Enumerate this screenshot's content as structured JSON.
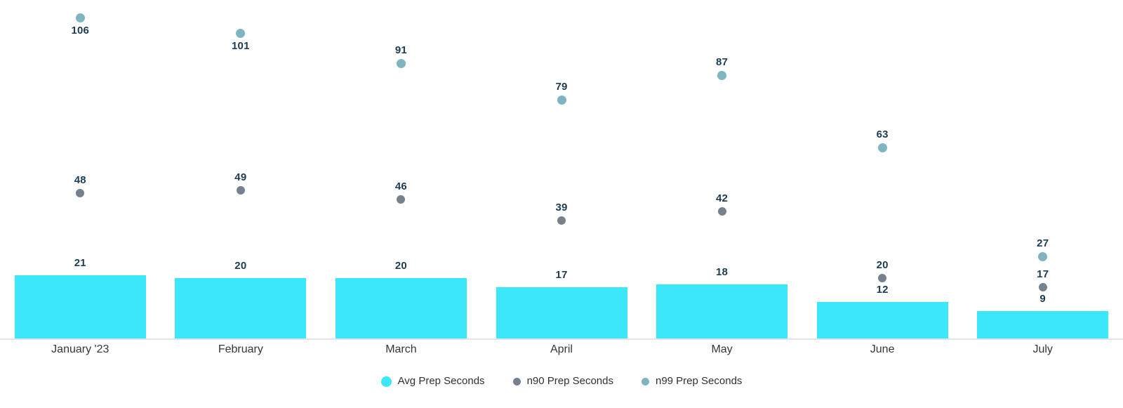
{
  "chart_data": {
    "type": "bar",
    "title": "",
    "xlabel": "",
    "ylabel": "",
    "ylim": [
      0,
      112
    ],
    "grid": false,
    "legend_position": "bottom",
    "value_labels_shown": true,
    "categories": [
      "January '23",
      "February",
      "March",
      "April",
      "May",
      "June",
      "July"
    ],
    "series": [
      {
        "name": "Avg Prep Seconds",
        "type": "bar",
        "color": "#3ce7fa",
        "values": [
          21,
          20,
          20,
          17,
          18,
          12,
          9
        ]
      },
      {
        "name": "n90 Prep Seconds",
        "type": "scatter",
        "color": "#75818c",
        "values": [
          48,
          49,
          46,
          39,
          42,
          20,
          17
        ]
      },
      {
        "name": "n99 Prep Seconds",
        "type": "scatter",
        "color": "#7fb5bf",
        "values": [
          106,
          101,
          91,
          79,
          87,
          63,
          27
        ]
      }
    ]
  },
  "colors": {
    "value_label": "#1d3c51",
    "month_label": "#33363c",
    "axis_line": "#e1e4ec",
    "background": "#ffffff"
  }
}
